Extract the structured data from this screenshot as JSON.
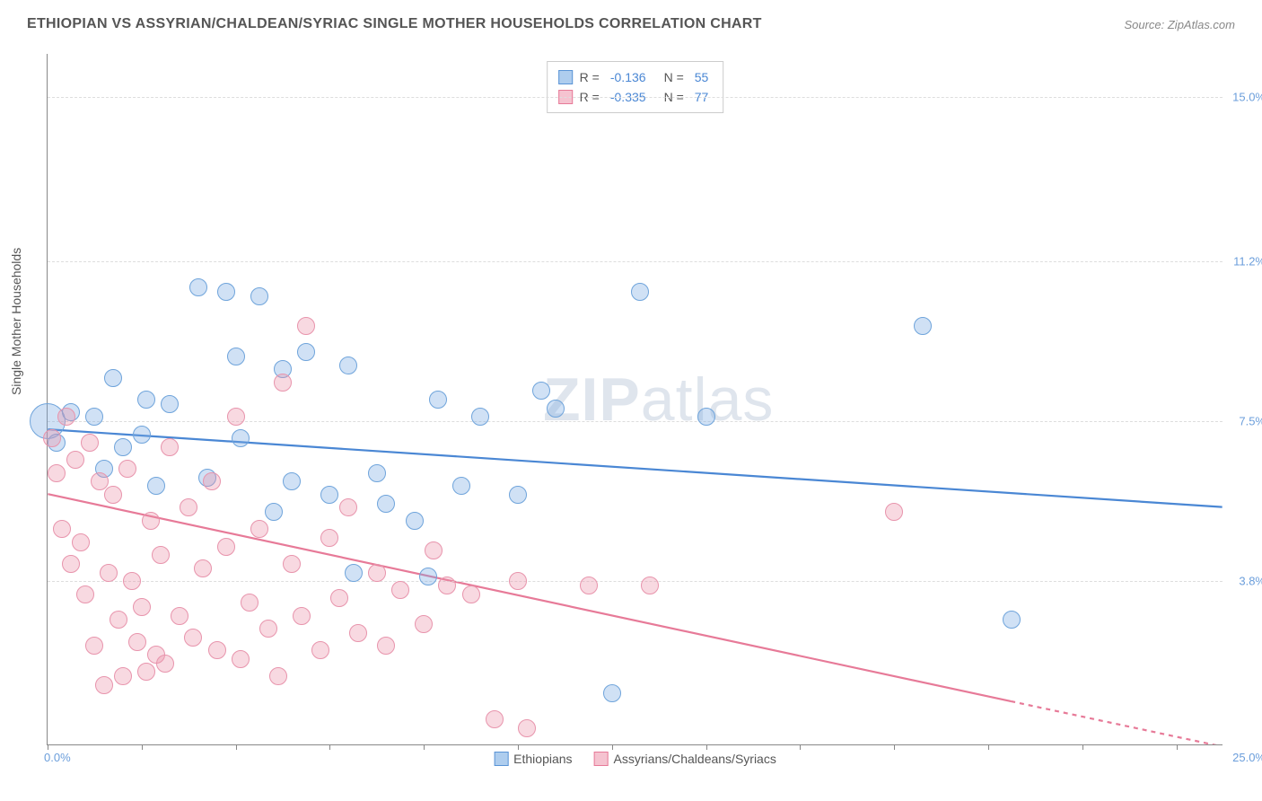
{
  "header": {
    "title": "ETHIOPIAN VS ASSYRIAN/CHALDEAN/SYRIAC SINGLE MOTHER HOUSEHOLDS CORRELATION CHART",
    "source_prefix": "Source: ",
    "source_name": "ZipAtlas.com"
  },
  "chart": {
    "type": "scatter",
    "ylabel": "Single Mother Households",
    "background_color": "#ffffff",
    "grid_color": "#dddddd",
    "axis_color": "#888888",
    "xlim": [
      0,
      25
    ],
    "ylim": [
      0,
      16
    ],
    "x_start_label": "0.0%",
    "x_end_label": "25.0%",
    "x_ticks": [
      0,
      2,
      4,
      6,
      8,
      10,
      12,
      14,
      16,
      18,
      20,
      22,
      24
    ],
    "y_gridlines": [
      {
        "y": 3.8,
        "label": "3.8%"
      },
      {
        "y": 7.5,
        "label": "7.5%"
      },
      {
        "y": 11.2,
        "label": "11.2%"
      },
      {
        "y": 15.0,
        "label": "15.0%"
      }
    ],
    "watermark": {
      "zip": "ZIP",
      "rest": "atlas"
    },
    "stats_legend": [
      {
        "swatch_fill": "#aecdee",
        "swatch_stroke": "#5a94d6",
        "r_label": "R =",
        "r": "-0.136",
        "n_label": "N =",
        "n": "55"
      },
      {
        "swatch_fill": "#f5c3d0",
        "swatch_stroke": "#e77a98",
        "r_label": "R =",
        "r": "-0.335",
        "n_label": "N =",
        "n": "77"
      }
    ],
    "bottom_legend": [
      {
        "swatch_fill": "#aecdee",
        "swatch_stroke": "#5a94d6",
        "label": "Ethiopians"
      },
      {
        "swatch_fill": "#f5c3d0",
        "swatch_stroke": "#e77a98",
        "label": "Assyrians/Chaldeans/Syriacs"
      }
    ],
    "series": [
      {
        "name": "Ethiopians",
        "fill": "rgba(120,170,225,0.35)",
        "stroke": "#6fa4db",
        "marker_r": 10,
        "trend": {
          "color": "#4a87d4",
          "width": 2.2,
          "x1": 0,
          "y1": 7.3,
          "x2": 25,
          "y2": 5.5,
          "dash_after_x": 25
        },
        "points": [
          {
            "x": 0.0,
            "y": 7.5,
            "r": 20
          },
          {
            "x": 0.2,
            "y": 7.0
          },
          {
            "x": 0.5,
            "y": 7.7
          },
          {
            "x": 1.0,
            "y": 7.6
          },
          {
            "x": 1.2,
            "y": 6.4
          },
          {
            "x": 1.4,
            "y": 8.5
          },
          {
            "x": 1.6,
            "y": 6.9
          },
          {
            "x": 2.0,
            "y": 7.2
          },
          {
            "x": 2.1,
            "y": 8.0
          },
          {
            "x": 2.3,
            "y": 6.0
          },
          {
            "x": 2.6,
            "y": 7.9
          },
          {
            "x": 3.2,
            "y": 10.6
          },
          {
            "x": 3.4,
            "y": 6.2
          },
          {
            "x": 3.8,
            "y": 10.5
          },
          {
            "x": 4.0,
            "y": 9.0
          },
          {
            "x": 4.1,
            "y": 7.1
          },
          {
            "x": 4.5,
            "y": 10.4
          },
          {
            "x": 4.8,
            "y": 5.4
          },
          {
            "x": 5.0,
            "y": 8.7
          },
          {
            "x": 5.2,
            "y": 6.1
          },
          {
            "x": 5.5,
            "y": 9.1
          },
          {
            "x": 6.0,
            "y": 5.8
          },
          {
            "x": 6.4,
            "y": 8.8
          },
          {
            "x": 6.5,
            "y": 4.0
          },
          {
            "x": 7.0,
            "y": 6.3
          },
          {
            "x": 7.2,
            "y": 5.6
          },
          {
            "x": 7.8,
            "y": 5.2
          },
          {
            "x": 8.1,
            "y": 3.9
          },
          {
            "x": 8.3,
            "y": 8.0
          },
          {
            "x": 8.8,
            "y": 6.0
          },
          {
            "x": 9.2,
            "y": 7.6
          },
          {
            "x": 10.0,
            "y": 5.8
          },
          {
            "x": 10.5,
            "y": 8.2
          },
          {
            "x": 10.8,
            "y": 7.8
          },
          {
            "x": 12.0,
            "y": 1.2
          },
          {
            "x": 12.6,
            "y": 10.5
          },
          {
            "x": 14.0,
            "y": 7.6
          },
          {
            "x": 18.6,
            "y": 9.7
          },
          {
            "x": 20.5,
            "y": 2.9
          }
        ]
      },
      {
        "name": "Assyrians/Chaldeans/Syriacs",
        "fill": "rgba(235,145,170,0.35)",
        "stroke": "#e894ac",
        "marker_r": 10,
        "trend": {
          "color": "#e77a98",
          "width": 2.2,
          "x1": 0,
          "y1": 5.8,
          "x2": 20.5,
          "y2": 1.0,
          "dash_after_x": 20.5,
          "x3": 25,
          "y3": -0.05
        },
        "points": [
          {
            "x": 0.1,
            "y": 7.1
          },
          {
            "x": 0.2,
            "y": 6.3
          },
          {
            "x": 0.3,
            "y": 5.0
          },
          {
            "x": 0.4,
            "y": 7.6
          },
          {
            "x": 0.5,
            "y": 4.2
          },
          {
            "x": 0.6,
            "y": 6.6
          },
          {
            "x": 0.7,
            "y": 4.7
          },
          {
            "x": 0.8,
            "y": 3.5
          },
          {
            "x": 0.9,
            "y": 7.0
          },
          {
            "x": 1.0,
            "y": 2.3
          },
          {
            "x": 1.1,
            "y": 6.1
          },
          {
            "x": 1.2,
            "y": 1.4
          },
          {
            "x": 1.3,
            "y": 4.0
          },
          {
            "x": 1.4,
            "y": 5.8
          },
          {
            "x": 1.5,
            "y": 2.9
          },
          {
            "x": 1.6,
            "y": 1.6
          },
          {
            "x": 1.7,
            "y": 6.4
          },
          {
            "x": 1.8,
            "y": 3.8
          },
          {
            "x": 1.9,
            "y": 2.4
          },
          {
            "x": 2.0,
            "y": 3.2
          },
          {
            "x": 2.1,
            "y": 1.7
          },
          {
            "x": 2.2,
            "y": 5.2
          },
          {
            "x": 2.3,
            "y": 2.1
          },
          {
            "x": 2.4,
            "y": 4.4
          },
          {
            "x": 2.5,
            "y": 1.9
          },
          {
            "x": 2.6,
            "y": 6.9
          },
          {
            "x": 2.8,
            "y": 3.0
          },
          {
            "x": 3.0,
            "y": 5.5
          },
          {
            "x": 3.1,
            "y": 2.5
          },
          {
            "x": 3.3,
            "y": 4.1
          },
          {
            "x": 3.5,
            "y": 6.1
          },
          {
            "x": 3.6,
            "y": 2.2
          },
          {
            "x": 3.8,
            "y": 4.6
          },
          {
            "x": 4.0,
            "y": 7.6
          },
          {
            "x": 4.1,
            "y": 2.0
          },
          {
            "x": 4.3,
            "y": 3.3
          },
          {
            "x": 4.5,
            "y": 5.0
          },
          {
            "x": 4.7,
            "y": 2.7
          },
          {
            "x": 4.9,
            "y": 1.6
          },
          {
            "x": 5.0,
            "y": 8.4
          },
          {
            "x": 5.2,
            "y": 4.2
          },
          {
            "x": 5.4,
            "y": 3.0
          },
          {
            "x": 5.5,
            "y": 9.7
          },
          {
            "x": 5.8,
            "y": 2.2
          },
          {
            "x": 6.0,
            "y": 4.8
          },
          {
            "x": 6.2,
            "y": 3.4
          },
          {
            "x": 6.4,
            "y": 5.5
          },
          {
            "x": 6.6,
            "y": 2.6
          },
          {
            "x": 7.0,
            "y": 4.0
          },
          {
            "x": 7.2,
            "y": 2.3
          },
          {
            "x": 7.5,
            "y": 3.6
          },
          {
            "x": 8.0,
            "y": 2.8
          },
          {
            "x": 8.2,
            "y": 4.5
          },
          {
            "x": 8.5,
            "y": 3.7
          },
          {
            "x": 9.0,
            "y": 3.5
          },
          {
            "x": 9.5,
            "y": 0.6
          },
          {
            "x": 10.0,
            "y": 3.8
          },
          {
            "x": 10.2,
            "y": 0.4
          },
          {
            "x": 11.5,
            "y": 3.7
          },
          {
            "x": 12.8,
            "y": 3.7
          },
          {
            "x": 18.0,
            "y": 5.4
          }
        ]
      }
    ]
  }
}
